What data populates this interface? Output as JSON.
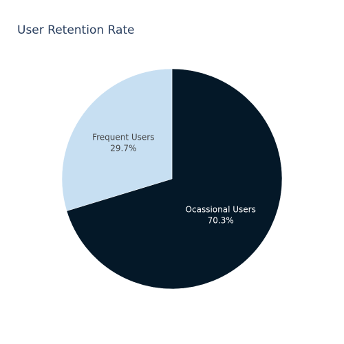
{
  "chart_data": {
    "type": "pie",
    "title": "User Retention Rate",
    "labels": [
      "Ocassional Users",
      "Frequent Users"
    ],
    "values": [
      70.3,
      29.7
    ],
    "percent_labels": [
      "70.3%",
      "29.7%"
    ],
    "colors": [
      "#041828",
      "#c7dff2"
    ],
    "text_colors": [
      "#ffffff",
      "#444444"
    ],
    "direction": "clockwise",
    "start": "12 o'clock",
    "legend": "none"
  }
}
